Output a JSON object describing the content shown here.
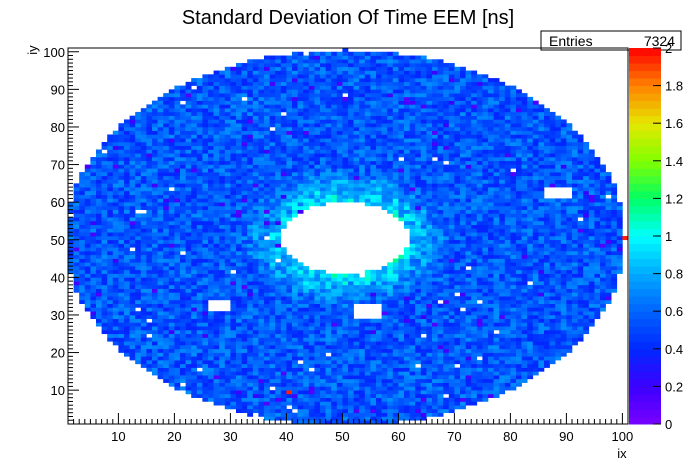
{
  "title": "Standard Deviation Of Time EEM [ns]",
  "stats": {
    "label": "Entries",
    "value": "7324"
  },
  "chart_data": {
    "type": "heatmap",
    "title": "Standard Deviation Of Time EEM [ns]",
    "xlabel": "ix",
    "ylabel": "iy",
    "xlim": [
      1,
      101
    ],
    "ylim": [
      1,
      101
    ],
    "bins": [
      100,
      100
    ],
    "x_ticks": [
      10,
      20,
      30,
      40,
      50,
      60,
      70,
      80,
      90,
      100
    ],
    "y_ticks": [
      10,
      20,
      30,
      40,
      50,
      60,
      70,
      80,
      90,
      100
    ],
    "zlim": [
      0,
      2
    ],
    "z_ticks": [
      "0",
      "0.2",
      "0.4",
      "0.6",
      "0.8",
      "1",
      "1.2",
      "1.4",
      "1.6",
      "1.8",
      "2"
    ],
    "entries": 7324,
    "description_of_values": "Endcap crystal map: typical values 0.4-0.7 ns, ring of 0.8-1.1 ns around the central hole (ix ~40-60, iy ~40-60 empty)",
    "typical_value": 0.55,
    "inner_ring_value": 0.95,
    "outer_radius": 50,
    "inner_radius": 11,
    "center": [
      50.5,
      50.5
    ],
    "hot_cells": [
      {
        "ix": 89,
        "iy": 63,
        "value": 2.0
      },
      {
        "ix": 40,
        "iy": 9,
        "value": 1.95
      },
      {
        "ix": 100,
        "iy": 50,
        "value": 1.95
      }
    ],
    "empty_blocks": [
      {
        "ix": [
          26,
          29
        ],
        "iy": [
          31,
          33
        ]
      },
      {
        "ix": [
          52,
          56
        ],
        "iy": [
          29,
          32
        ]
      },
      {
        "ix": [
          86,
          90
        ],
        "iy": [
          61,
          63
        ]
      }
    ],
    "colorbar": true,
    "grid": false,
    "legend": "stats box top-right"
  }
}
